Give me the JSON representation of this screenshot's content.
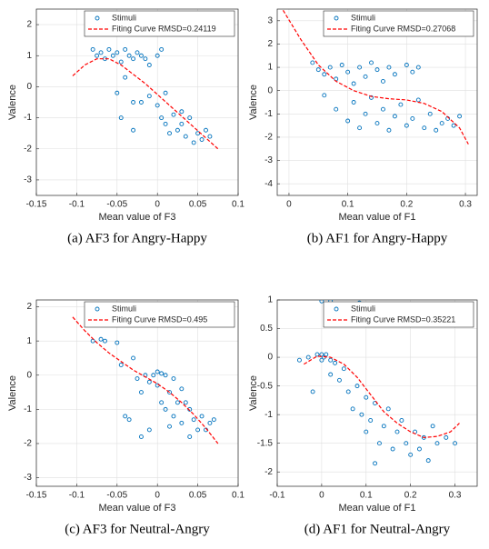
{
  "chart_data": [
    {
      "type": "scatter",
      "caption": "(a) AF3 for Angry-Happy",
      "xlabel": "Mean value of F3",
      "ylabel": "Valence",
      "xlim": [
        -0.15,
        0.1
      ],
      "ylim": [
        -3.5,
        2.5
      ],
      "xticks": [
        -0.15,
        -0.1,
        -0.05,
        0,
        0.05,
        0.1
      ],
      "yticks": [
        -3,
        -2,
        -1,
        0,
        1,
        2
      ],
      "grid": true,
      "legend": "top",
      "series": [
        {
          "name": "Stimuli",
          "type": "scatter",
          "color": "#0072bd",
          "x": [
            -0.08,
            -0.075,
            -0.07,
            -0.065,
            -0.06,
            -0.055,
            -0.05,
            -0.045,
            -0.04,
            -0.035,
            -0.03,
            -0.025,
            -0.02,
            -0.015,
            -0.01,
            0,
            0.005,
            -0.045,
            -0.05,
            -0.04,
            -0.03,
            -0.02,
            0,
            0.005,
            0.01,
            0.015,
            0.02,
            0.025,
            0.03,
            0.035,
            0.04,
            0.045,
            0.05,
            0.055,
            0.06,
            0.065,
            -0.03,
            -0.01,
            0.01,
            0.03
          ],
          "values": [
            1.2,
            1.0,
            1.1,
            0.9,
            1.2,
            1.0,
            1.1,
            0.8,
            1.2,
            1.0,
            0.9,
            1.1,
            1.0,
            0.9,
            0.7,
            1.0,
            1.2,
            -1.0,
            -0.2,
            0.3,
            -0.5,
            -0.5,
            -0.6,
            -1.0,
            -1.2,
            -1.5,
            -0.9,
            -1.4,
            -1.2,
            -1.6,
            -1.0,
            -1.8,
            -1.5,
            -1.7,
            -1.4,
            -1.6,
            -1.4,
            -0.3,
            -0.2,
            -0.8
          ]
        },
        {
          "name": "Fiting Curve RMSD=0.24119",
          "type": "line",
          "color": "#ff0000",
          "x": [
            -0.105,
            -0.09,
            -0.075,
            -0.06,
            -0.045,
            -0.03,
            -0.015,
            0,
            0.015,
            0.03,
            0.045,
            0.06,
            0.075
          ],
          "values": [
            0.35,
            0.7,
            0.9,
            0.9,
            0.7,
            0.4,
            0.1,
            -0.25,
            -0.6,
            -0.95,
            -1.3,
            -1.65,
            -2.0
          ]
        }
      ]
    },
    {
      "type": "scatter",
      "caption": "(b) AF1 for Angry-Happy",
      "xlabel": "Mean value of F1",
      "ylabel": "Valence",
      "xlim": [
        -0.02,
        0.32
      ],
      "ylim": [
        -4.5,
        3.5
      ],
      "xticks": [
        0,
        0.1,
        0.2,
        0.3
      ],
      "yticks": [
        -4,
        -3,
        -2,
        -1,
        0,
        1,
        2,
        3
      ],
      "grid": true,
      "legend": "top",
      "series": [
        {
          "name": "Stimuli",
          "type": "scatter",
          "color": "#0072bd",
          "x": [
            0.04,
            0.05,
            0.06,
            0.07,
            0.08,
            0.09,
            0.1,
            0.11,
            0.12,
            0.13,
            0.14,
            0.15,
            0.16,
            0.17,
            0.18,
            0.2,
            0.21,
            0.22,
            0.06,
            0.08,
            0.1,
            0.11,
            0.12,
            0.13,
            0.14,
            0.15,
            0.16,
            0.17,
            0.18,
            0.19,
            0.2,
            0.21,
            0.22,
            0.23,
            0.24,
            0.25,
            0.26,
            0.27,
            0.28,
            0.29
          ],
          "values": [
            1.2,
            0.9,
            0.7,
            1.0,
            0.5,
            1.1,
            0.8,
            0.3,
            1.0,
            0.6,
            1.2,
            0.9,
            0.4,
            1.0,
            0.7,
            1.1,
            0.8,
            1.0,
            -0.2,
            -0.8,
            -1.3,
            -0.5,
            -1.6,
            -1.0,
            -0.3,
            -1.4,
            -0.8,
            -1.7,
            -1.1,
            -0.6,
            -1.5,
            -1.2,
            -0.4,
            -1.6,
            -1.0,
            -1.7,
            -1.4,
            -1.2,
            -1.5,
            -1.1
          ]
        },
        {
          "name": "Fiting Curve RMSD=0.27068",
          "type": "line",
          "color": "#ff0000",
          "x": [
            -0.01,
            0.02,
            0.05,
            0.08,
            0.11,
            0.14,
            0.17,
            0.2,
            0.23,
            0.26,
            0.29,
            0.305
          ],
          "values": [
            3.45,
            2.2,
            1.1,
            0.4,
            0.0,
            -0.25,
            -0.35,
            -0.4,
            -0.55,
            -0.9,
            -1.6,
            -2.3
          ]
        }
      ]
    },
    {
      "type": "scatter",
      "caption": "(c) AF3 for Neutral-Angry",
      "xlabel": "Mean value of F3",
      "ylabel": "Valence",
      "xlim": [
        -0.15,
        0.1
      ],
      "ylim": [
        -3.25,
        2.2
      ],
      "xticks": [
        -0.15,
        -0.1,
        -0.05,
        0,
        0.05,
        0.1
      ],
      "yticks": [
        -3,
        -2,
        -1,
        0,
        1,
        2
      ],
      "grid": true,
      "legend": "top",
      "series": [
        {
          "name": "Stimuli",
          "type": "scatter",
          "color": "#0072bd",
          "x": [
            -0.08,
            -0.07,
            -0.065,
            -0.05,
            -0.045,
            -0.04,
            -0.035,
            -0.03,
            -0.025,
            -0.02,
            -0.015,
            -0.01,
            -0.005,
            0,
            0,
            0.005,
            0.005,
            0.01,
            0.01,
            0.015,
            0.015,
            0.02,
            0.02,
            0.025,
            0.03,
            0.03,
            0.035,
            0.04,
            0.04,
            0.045,
            0.05,
            0.055,
            0.06,
            0.065,
            0.07,
            -0.02,
            -0.01
          ],
          "values": [
            1.0,
            1.05,
            1.0,
            0.95,
            0.3,
            -1.2,
            -1.3,
            0.5,
            -0.1,
            -0.5,
            0.0,
            -0.2,
            0.0,
            0.1,
            -0.3,
            0.05,
            -0.8,
            -1.0,
            0.0,
            -0.5,
            -1.5,
            -1.2,
            -0.1,
            -0.8,
            -1.4,
            -0.4,
            -0.8,
            -1.0,
            -1.8,
            -1.3,
            -1.6,
            -1.2,
            -1.6,
            -1.4,
            -1.3,
            -1.8,
            -1.6
          ]
        },
        {
          "name": "Fiting Curve RMSD=0.495",
          "type": "line",
          "color": "#ff0000",
          "x": [
            -0.105,
            -0.09,
            -0.075,
            -0.06,
            -0.045,
            -0.03,
            -0.015,
            0,
            0.015,
            0.03,
            0.045,
            0.06,
            0.075
          ],
          "values": [
            1.7,
            1.3,
            0.95,
            0.65,
            0.4,
            0.15,
            -0.05,
            -0.25,
            -0.5,
            -0.8,
            -1.15,
            -1.55,
            -2.0
          ]
        }
      ]
    },
    {
      "type": "scatter",
      "caption": "(d) AF1 for Neutral-Angry",
      "xlabel": "Mean value of F1",
      "ylabel": "Valence",
      "xlim": [
        -0.1,
        0.35
      ],
      "ylim": [
        -2.25,
        1
      ],
      "xticks": [
        -0.1,
        0,
        0.1,
        0.2,
        0.3
      ],
      "yticks": [
        -2,
        -1.5,
        -1,
        -0.5,
        0,
        0.5,
        1
      ],
      "grid": true,
      "legend": "top",
      "series": [
        {
          "name": "Stimuli",
          "type": "scatter",
          "color": "#0072bd",
          "x": [
            -0.05,
            -0.03,
            -0.02,
            -0.01,
            0,
            0,
            0.005,
            0.01,
            0.02,
            0.02,
            0.03,
            0.04,
            0.05,
            0.06,
            0.07,
            0.08,
            0.09,
            0.1,
            0.1,
            0.11,
            0.12,
            0.13,
            0.14,
            0.15,
            0.16,
            0.17,
            0.18,
            0.19,
            0.2,
            0.21,
            0.22,
            0.23,
            0.24,
            0.25,
            0.26,
            0.28,
            0.3,
            0,
            0.02,
            0.085,
            0.12
          ],
          "values": [
            -0.05,
            0.0,
            -0.6,
            0.05,
            0.05,
            -0.05,
            0.0,
            0.05,
            -0.05,
            -0.3,
            -0.1,
            -0.4,
            -0.2,
            -0.6,
            -0.9,
            -0.5,
            -1.0,
            -0.7,
            -1.3,
            -1.1,
            -0.8,
            -1.5,
            -1.2,
            -0.9,
            -1.6,
            -1.3,
            -1.1,
            -1.5,
            -1.7,
            -1.3,
            -1.6,
            -1.4,
            -1.8,
            -1.2,
            -1.5,
            -1.4,
            -1.5,
            0.98,
            0.98,
            0.95,
            -1.85
          ]
        },
        {
          "name": "Fiting Curve RMSD=0.35221",
          "type": "line",
          "color": "#ff0000",
          "x": [
            -0.04,
            -0.01,
            0.02,
            0.05,
            0.08,
            0.11,
            0.14,
            0.17,
            0.2,
            0.23,
            0.26,
            0.29,
            0.31
          ],
          "values": [
            -0.12,
            0.02,
            0.0,
            -0.12,
            -0.35,
            -0.65,
            -0.95,
            -1.15,
            -1.3,
            -1.4,
            -1.38,
            -1.3,
            -1.15
          ]
        }
      ]
    }
  ]
}
